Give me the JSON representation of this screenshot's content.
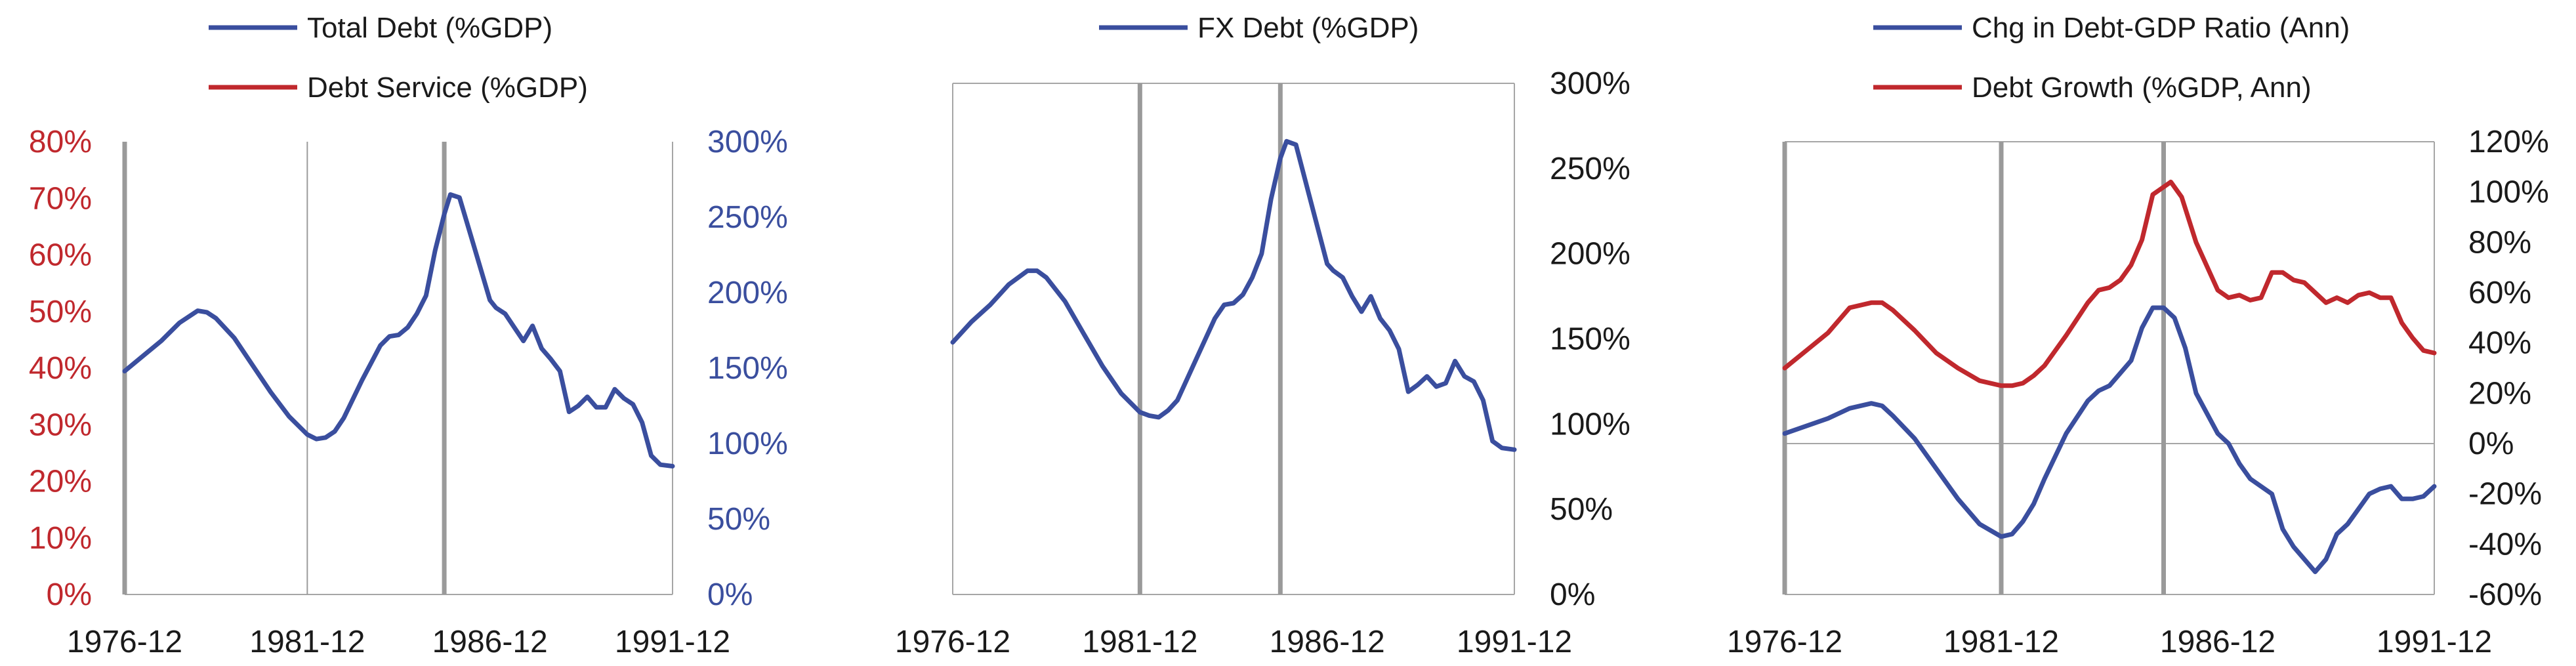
{
  "chart_data": [
    {
      "type": "line",
      "title": "",
      "x_ticks": [
        "1976-12",
        "1981-12",
        "1986-12",
        "1991-12"
      ],
      "xlim": [
        "1976-12",
        "1991-12"
      ],
      "vlines": [
        {
          "x": "1976-12",
          "style": "thick"
        },
        {
          "x": "1981-12",
          "style": "thin"
        },
        {
          "x": "1985-09",
          "style": "thick"
        }
      ],
      "left_axis": {
        "ylim": [
          0,
          80
        ],
        "ticks": [
          "0%",
          "10%",
          "20%",
          "30%",
          "40%",
          "50%",
          "60%",
          "70%",
          "80%"
        ],
        "color": "#c0282d"
      },
      "right_axis": {
        "ylim": [
          0,
          300
        ],
        "ticks": [
          "0%",
          "50%",
          "100%",
          "150%",
          "200%",
          "250%",
          "300%"
        ],
        "color": "#3a4e9e"
      },
      "legend": [
        "Total Debt (%GDP)",
        "Debt Service (%GDP)"
      ],
      "series": [
        {
          "name": "Total Debt (%GDP)",
          "axis": "right",
          "color": "#3a4e9e",
          "points": [
            [
              "1976-12",
              148
            ],
            [
              "1977-06",
              158
            ],
            [
              "1977-12",
              168
            ],
            [
              "1978-06",
              180
            ],
            [
              "1978-12",
              188
            ],
            [
              "1979-03",
              187
            ],
            [
              "1979-06",
              183
            ],
            [
              "1979-12",
              170
            ],
            [
              "1980-06",
              152
            ],
            [
              "1980-12",
              134
            ],
            [
              "1981-06",
              118
            ],
            [
              "1981-12",
              106
            ],
            [
              "1982-03",
              103
            ],
            [
              "1982-06",
              104
            ],
            [
              "1982-09",
              108
            ],
            [
              "1982-12",
              117
            ],
            [
              "1983-06",
              142
            ],
            [
              "1983-12",
              165
            ],
            [
              "1984-03",
              171
            ],
            [
              "1984-06",
              172
            ],
            [
              "1984-09",
              177
            ],
            [
              "1984-12",
              186
            ],
            [
              "1985-03",
              198
            ],
            [
              "1985-06",
              228
            ],
            [
              "1985-09",
              252
            ],
            [
              "1985-11",
              265
            ],
            [
              "1986-02",
              263
            ],
            [
              "1986-06",
              236
            ],
            [
              "1986-12",
              195
            ],
            [
              "1987-02",
              190
            ],
            [
              "1987-05",
              186
            ],
            [
              "1987-08",
              177
            ],
            [
              "1987-11",
              168
            ],
            [
              "1988-02",
              178
            ],
            [
              "1988-05",
              163
            ],
            [
              "1988-08",
              156
            ],
            [
              "1988-11",
              148
            ],
            [
              "1989-02",
              121
            ],
            [
              "1989-05",
              125
            ],
            [
              "1989-08",
              131
            ],
            [
              "1989-11",
              124
            ],
            [
              "1990-02",
              124
            ],
            [
              "1990-05",
              136
            ],
            [
              "1990-08",
              130
            ],
            [
              "1990-11",
              126
            ],
            [
              "1991-02",
              114
            ],
            [
              "1991-05",
              92
            ],
            [
              "1991-08",
              86
            ],
            [
              "1991-12",
              85
            ]
          ]
        },
        {
          "name": "Debt Service (%GDP)",
          "axis": "left",
          "color": "#c0282d",
          "points": []
        }
      ]
    },
    {
      "type": "line",
      "title": "",
      "x_ticks": [
        "1976-12",
        "1981-12",
        "1986-12",
        "1991-12"
      ],
      "xlim": [
        "1976-12",
        "1991-12"
      ],
      "vlines": [
        {
          "x": "1981-12",
          "style": "thick"
        },
        {
          "x": "1985-09",
          "style": "thick"
        }
      ],
      "right_axis": {
        "ylim": [
          0,
          300
        ],
        "ticks": [
          "0%",
          "50%",
          "100%",
          "150%",
          "200%",
          "250%",
          "300%"
        ],
        "color": "#1a1a1a"
      },
      "legend": [
        "FX Debt (%GDP)"
      ],
      "series": [
        {
          "name": "FX Debt (%GDP)",
          "axis": "right",
          "color": "#3a4e9e",
          "points": [
            [
              "1976-12",
              148
            ],
            [
              "1977-06",
              160
            ],
            [
              "1977-12",
              170
            ],
            [
              "1978-06",
              182
            ],
            [
              "1978-12",
              190
            ],
            [
              "1979-03",
              190
            ],
            [
              "1979-06",
              186
            ],
            [
              "1979-12",
              172
            ],
            [
              "1980-06",
              153
            ],
            [
              "1980-12",
              134
            ],
            [
              "1981-06",
              118
            ],
            [
              "1981-12",
              107
            ],
            [
              "1982-03",
              105
            ],
            [
              "1982-06",
              104
            ],
            [
              "1982-09",
              108
            ],
            [
              "1982-12",
              114
            ],
            [
              "1983-06",
              138
            ],
            [
              "1983-12",
              162
            ],
            [
              "1984-03",
              170
            ],
            [
              "1984-06",
              171
            ],
            [
              "1984-09",
              176
            ],
            [
              "1984-12",
              186
            ],
            [
              "1985-03",
              200
            ],
            [
              "1985-06",
              232
            ],
            [
              "1985-09",
              256
            ],
            [
              "1985-11",
              266
            ],
            [
              "1986-02",
              264
            ],
            [
              "1986-06",
              236
            ],
            [
              "1986-12",
              194
            ],
            [
              "1987-02",
              190
            ],
            [
              "1987-05",
              186
            ],
            [
              "1987-08",
              175
            ],
            [
              "1987-11",
              166
            ],
            [
              "1988-02",
              175
            ],
            [
              "1988-05",
              162
            ],
            [
              "1988-08",
              155
            ],
            [
              "1988-11",
              144
            ],
            [
              "1989-02",
              119
            ],
            [
              "1989-05",
              123
            ],
            [
              "1989-08",
              128
            ],
            [
              "1989-11",
              122
            ],
            [
              "1990-02",
              124
            ],
            [
              "1990-05",
              137
            ],
            [
              "1990-08",
              128
            ],
            [
              "1990-11",
              125
            ],
            [
              "1991-02",
              114
            ],
            [
              "1991-05",
              90
            ],
            [
              "1991-08",
              86
            ],
            [
              "1991-12",
              85
            ]
          ]
        }
      ]
    },
    {
      "type": "line",
      "title": "",
      "x_ticks": [
        "1976-12",
        "1981-12",
        "1986-12",
        "1991-12"
      ],
      "xlim": [
        "1976-12",
        "1991-12"
      ],
      "vlines": [
        {
          "x": "1976-12",
          "style": "thick"
        },
        {
          "x": "1981-12",
          "style": "thick"
        },
        {
          "x": "1985-09",
          "style": "thick"
        }
      ],
      "zero_line": true,
      "right_axis": {
        "ylim": [
          -60,
          120
        ],
        "ticks": [
          "-60%",
          "-40%",
          "-20%",
          "0%",
          "20%",
          "40%",
          "60%",
          "80%",
          "100%",
          "120%"
        ],
        "color": "#1a1a1a"
      },
      "legend": [
        "Chg in Debt-GDP Ratio (Ann)",
        "Debt Growth (%GDP, Ann)"
      ],
      "series": [
        {
          "name": "Chg in Debt-GDP Ratio (Ann)",
          "axis": "right",
          "color": "#3a4e9e",
          "points": [
            [
              "1976-12",
              4
            ],
            [
              "1977-06",
              7
            ],
            [
              "1977-12",
              10
            ],
            [
              "1978-06",
              14
            ],
            [
              "1978-12",
              16
            ],
            [
              "1979-03",
              15
            ],
            [
              "1979-06",
              11
            ],
            [
              "1979-12",
              2
            ],
            [
              "1980-06",
              -10
            ],
            [
              "1980-12",
              -22
            ],
            [
              "1981-06",
              -32
            ],
            [
              "1981-12",
              -37
            ],
            [
              "1982-03",
              -36
            ],
            [
              "1982-06",
              -31
            ],
            [
              "1982-09",
              -24
            ],
            [
              "1982-12",
              -14
            ],
            [
              "1983-06",
              4
            ],
            [
              "1983-12",
              17
            ],
            [
              "1984-03",
              21
            ],
            [
              "1984-06",
              23
            ],
            [
              "1984-09",
              28
            ],
            [
              "1984-12",
              33
            ],
            [
              "1985-03",
              46
            ],
            [
              "1985-06",
              54
            ],
            [
              "1985-09",
              54
            ],
            [
              "1985-12",
              50
            ],
            [
              "1986-03",
              38
            ],
            [
              "1986-06",
              20
            ],
            [
              "1986-12",
              4
            ],
            [
              "1987-03",
              0
            ],
            [
              "1987-06",
              -8
            ],
            [
              "1987-09",
              -14
            ],
            [
              "1987-12",
              -17
            ],
            [
              "1988-03",
              -20
            ],
            [
              "1988-06",
              -34
            ],
            [
              "1988-09",
              -41
            ],
            [
              "1988-12",
              -46
            ],
            [
              "1989-03",
              -51
            ],
            [
              "1989-06",
              -46
            ],
            [
              "1989-09",
              -36
            ],
            [
              "1989-12",
              -32
            ],
            [
              "1990-03",
              -26
            ],
            [
              "1990-06",
              -20
            ],
            [
              "1990-09",
              -18
            ],
            [
              "1990-12",
              -17
            ],
            [
              "1991-03",
              -22
            ],
            [
              "1991-06",
              -22
            ],
            [
              "1991-09",
              -21
            ],
            [
              "1991-12",
              -17
            ]
          ]
        },
        {
          "name": "Debt Growth (%GDP, Ann)",
          "axis": "right",
          "color": "#c0282d",
          "points": [
            [
              "1976-12",
              30
            ],
            [
              "1977-06",
              37
            ],
            [
              "1977-12",
              44
            ],
            [
              "1978-06",
              54
            ],
            [
              "1978-12",
              56
            ],
            [
              "1979-03",
              56
            ],
            [
              "1979-06",
              53
            ],
            [
              "1979-12",
              45
            ],
            [
              "1980-06",
              36
            ],
            [
              "1980-12",
              30
            ],
            [
              "1981-06",
              25
            ],
            [
              "1981-12",
              23
            ],
            [
              "1982-03",
              23
            ],
            [
              "1982-06",
              24
            ],
            [
              "1982-09",
              27
            ],
            [
              "1982-12",
              31
            ],
            [
              "1983-06",
              43
            ],
            [
              "1983-12",
              56
            ],
            [
              "1984-03",
              61
            ],
            [
              "1984-06",
              62
            ],
            [
              "1984-09",
              65
            ],
            [
              "1984-12",
              71
            ],
            [
              "1985-03",
              81
            ],
            [
              "1985-06",
              99
            ],
            [
              "1985-09",
              102
            ],
            [
              "1985-11",
              104
            ],
            [
              "1986-02",
              98
            ],
            [
              "1986-06",
              80
            ],
            [
              "1986-12",
              61
            ],
            [
              "1987-03",
              58
            ],
            [
              "1987-06",
              59
            ],
            [
              "1987-09",
              57
            ],
            [
              "1987-12",
              58
            ],
            [
              "1988-03",
              68
            ],
            [
              "1988-06",
              68
            ],
            [
              "1988-09",
              65
            ],
            [
              "1988-12",
              64
            ],
            [
              "1989-03",
              60
            ],
            [
              "1989-06",
              56
            ],
            [
              "1989-09",
              58
            ],
            [
              "1989-12",
              56
            ],
            [
              "1990-03",
              59
            ],
            [
              "1990-06",
              60
            ],
            [
              "1990-09",
              58
            ],
            [
              "1990-12",
              58
            ],
            [
              "1991-03",
              48
            ],
            [
              "1991-06",
              42
            ],
            [
              "1991-09",
              37
            ],
            [
              "1991-12",
              36
            ]
          ]
        }
      ]
    }
  ]
}
